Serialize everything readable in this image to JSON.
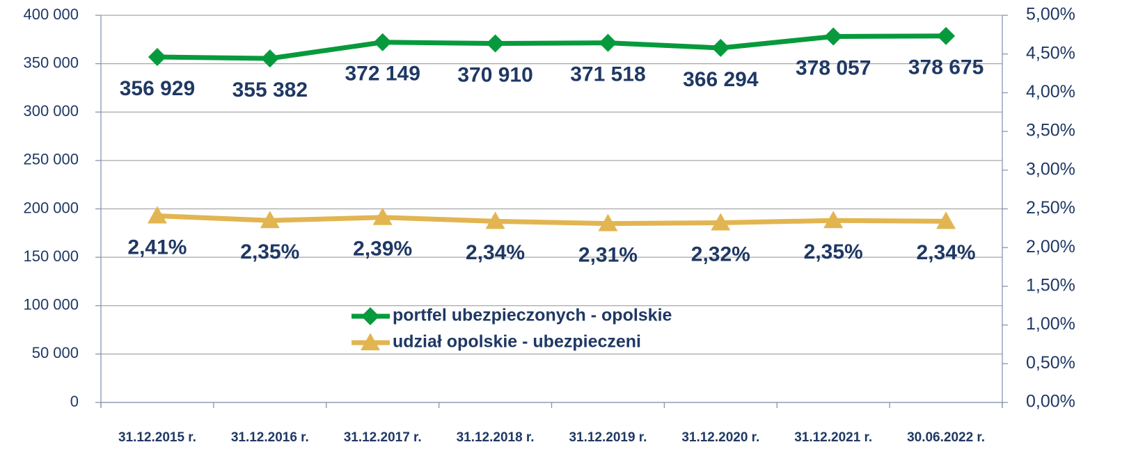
{
  "chart_data": {
    "type": "line",
    "categories": [
      "31.12.2015 r.",
      "31.12.2016 r.",
      "31.12.2017 r.",
      "31.12.2018 r.",
      "31.12.2019 r.",
      "31.12.2020 r.",
      "31.12.2021 r.",
      "30.06.2022 r."
    ],
    "series": [
      {
        "name": "portfel ubezpieczonych - opolskie",
        "color": "#079a3c",
        "marker": "diamond",
        "values": [
          356929,
          355382,
          372149,
          370910,
          371518,
          366294,
          378057,
          378675
        ],
        "value_labels": [
          "356 929",
          "355 382",
          "372 149",
          "370 910",
          "371 518",
          "366 294",
          "378 057",
          "378 675"
        ]
      },
      {
        "name": "udział opolskie - ubezpieczeni",
        "color": "#e2b551",
        "marker": "triangle",
        "axis": "y2",
        "values": [
          2.41,
          2.35,
          2.39,
          2.34,
          2.31,
          2.32,
          2.35,
          2.34
        ],
        "value_labels": [
          "2,41%",
          "2,35%",
          "2,39%",
          "2,34%",
          "2,31%",
          "2,32%",
          "2,35%",
          "2,34%"
        ]
      }
    ],
    "ylim": [
      0,
      400000
    ],
    "yticks": [
      {
        "value": 0,
        "label": "0"
      },
      {
        "value": 50000,
        "label": "50 000"
      },
      {
        "value": 100000,
        "label": "100 000"
      },
      {
        "value": 150000,
        "label": "150 000"
      },
      {
        "value": 200000,
        "label": "200 000"
      },
      {
        "value": 250000,
        "label": "250 000"
      },
      {
        "value": 300000,
        "label": "300 000"
      },
      {
        "value": 350000,
        "label": "350 000"
      },
      {
        "value": 400000,
        "label": "400 000"
      }
    ],
    "y2lim": [
      0,
      5
    ],
    "y2ticks": [
      {
        "value": 0,
        "label": "0,00%"
      },
      {
        "value": 0.5,
        "label": "0,50%"
      },
      {
        "value": 1,
        "label": "1,00%"
      },
      {
        "value": 1.5,
        "label": "1,50%"
      },
      {
        "value": 2,
        "label": "2,00%"
      },
      {
        "value": 2.5,
        "label": "2,50%"
      },
      {
        "value": 3,
        "label": "3,00%"
      },
      {
        "value": 3.5,
        "label": "3,50%"
      },
      {
        "value": 4,
        "label": "4,00%"
      },
      {
        "value": 4.5,
        "label": "4,50%"
      },
      {
        "value": 5,
        "label": "5,00%"
      }
    ],
    "grid": true,
    "legend": "center"
  }
}
